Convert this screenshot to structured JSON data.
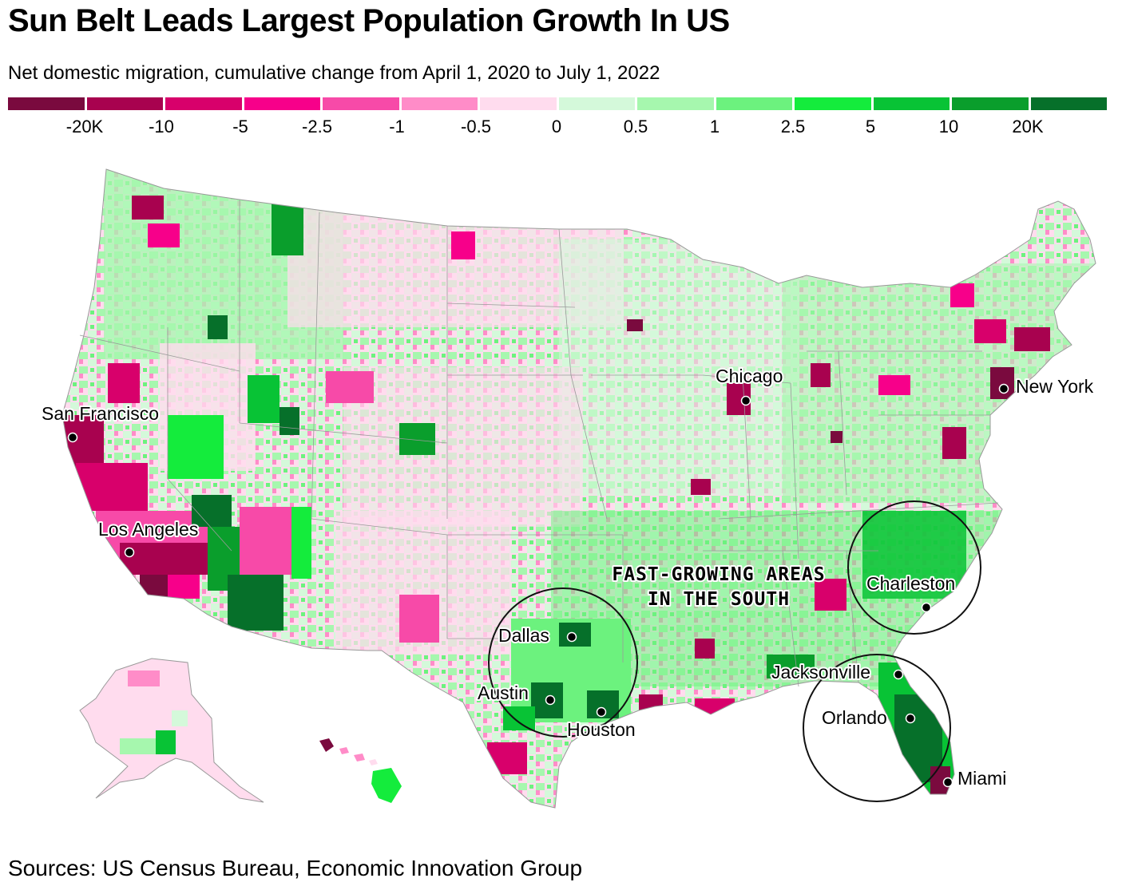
{
  "title": "Sun Belt Leads Largest Population Growth In US",
  "subtitle": "Net domestic migration, cumulative change from April 1, 2020 to July 1, 2022",
  "legend": {
    "colors": [
      "#7a0a3e",
      "#a8024f",
      "#d8006b",
      "#f7008a",
      "#f74aa8",
      "#ff8cc8",
      "#ffdcee",
      "#d4f9da",
      "#a6f7ae",
      "#6cf27e",
      "#14ec3c",
      "#08c335",
      "#0a9e2c",
      "#06702a"
    ],
    "labels": [
      "-20K",
      "-10",
      "-5",
      "-2.5",
      "-1",
      "-0.5",
      "0",
      "0.5",
      "1",
      "2.5",
      "5",
      "10",
      "20K"
    ]
  },
  "cities": [
    {
      "name": "San Francisco"
    },
    {
      "name": "Los Angeles"
    },
    {
      "name": "Chicago"
    },
    {
      "name": "New York"
    },
    {
      "name": "Dallas"
    },
    {
      "name": "Austin"
    },
    {
      "name": "Houston"
    },
    {
      "name": "Charleston"
    },
    {
      "name": "Jacksonville"
    },
    {
      "name": "Orlando"
    },
    {
      "name": "Miami"
    }
  ],
  "annotation": {
    "line1": "FAST-GROWING AREAS",
    "line2": "IN THE SOUTH"
  },
  "source": "Sources: US Census Bureau, Economic Innovation Group"
}
